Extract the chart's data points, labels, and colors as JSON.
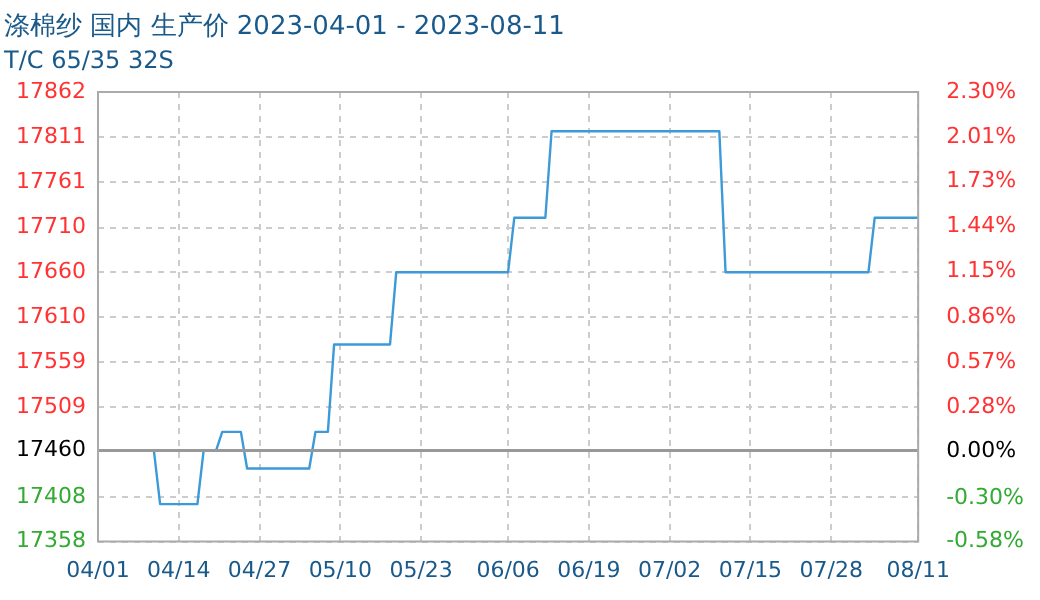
{
  "chart_data": {
    "type": "line",
    "title": "涤棉纱 国内 生产价 2023-04-01 - 2023-08-11",
    "subtitle": "T/C 65/35 32S",
    "x": [
      "2023-04-01",
      "2023-04-10",
      "2023-04-11",
      "2023-04-17",
      "2023-04-18",
      "2023-04-20",
      "2023-04-21",
      "2023-04-24",
      "2023-04-25",
      "2023-05-05",
      "2023-05-06",
      "2023-05-08",
      "2023-05-09",
      "2023-05-18",
      "2023-05-19",
      "2023-06-06",
      "2023-06-07",
      "2023-06-12",
      "2023-06-13",
      "2023-07-10",
      "2023-07-11",
      "2023-08-03",
      "2023-08-04",
      "2023-08-11"
    ],
    "series": [
      {
        "color": "#3d9ad8",
        "values": [
          17460,
          17460,
          17400,
          17400,
          17460,
          17460,
          17481,
          17481,
          17440,
          17440,
          17481,
          17481,
          17579,
          17579,
          17660,
          17660,
          17721,
          17721,
          17818,
          17818,
          17660,
          17660,
          17721,
          17721
        ]
      }
    ],
    "xlim": [
      "2023-04-01",
      "2023-08-11"
    ],
    "xticks": [
      {
        "value": "2023-04-01",
        "label": "04/01"
      },
      {
        "value": "2023-04-14",
        "label": "04/14"
      },
      {
        "value": "2023-04-27",
        "label": "04/27"
      },
      {
        "value": "2023-05-10",
        "label": "05/10"
      },
      {
        "value": "2023-05-23",
        "label": "05/23"
      },
      {
        "value": "2023-06-06",
        "label": "06/06"
      },
      {
        "value": "2023-06-19",
        "label": "06/19"
      },
      {
        "value": "2023-07-02",
        "label": "07/02"
      },
      {
        "value": "2023-07-15",
        "label": "07/15"
      },
      {
        "value": "2023-07-28",
        "label": "07/28"
      },
      {
        "value": "2023-08-11",
        "label": "08/11"
      }
    ],
    "ylim": [
      17358,
      17862
    ],
    "yticks": [
      17358,
      17408,
      17460,
      17509,
      17559,
      17610,
      17660,
      17710,
      17761,
      17811,
      17862
    ],
    "y2lim": [
      -0.58,
      2.3
    ],
    "y2ticks": [
      {
        "value": -0.58,
        "label": "-0.58%"
      },
      {
        "value": -0.3,
        "label": "-0.30%"
      },
      {
        "value": 0,
        "label": "0.00%"
      },
      {
        "value": 0.28,
        "label": "0.28%"
      },
      {
        "value": 0.57,
        "label": "0.57%"
      },
      {
        "value": 0.86,
        "label": "0.86%"
      },
      {
        "value": 1.15,
        "label": "1.15%"
      },
      {
        "value": 1.44,
        "label": "1.44%"
      },
      {
        "value": 1.73,
        "label": "1.73%"
      },
      {
        "value": 2.01,
        "label": "2.01%"
      },
      {
        "value": 2.3,
        "label": "2.30%"
      }
    ],
    "ref_lines": [
      {
        "axis": "y",
        "value": 17460,
        "color": "#999999"
      }
    ],
    "grid": true,
    "legend": false,
    "marker": "none",
    "line_style": "solid"
  }
}
